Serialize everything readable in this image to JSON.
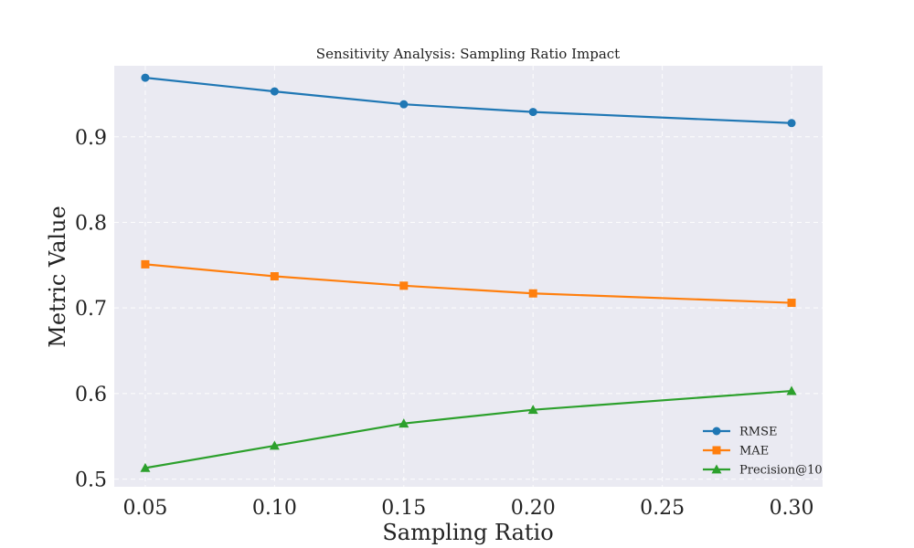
{
  "chart_data": {
    "type": "line",
    "title": "Sensitivity Analysis: Sampling Ratio Impact",
    "xlabel": "Sampling Ratio",
    "ylabel": "Metric Value",
    "xlim": [
      0.038,
      0.312
    ],
    "ylim": [
      0.491,
      0.983
    ],
    "xticks": [
      "0.05",
      "0.10",
      "0.15",
      "0.20",
      "0.25",
      "0.30"
    ],
    "yticks": [
      "0.5",
      "0.6",
      "0.7",
      "0.8",
      "0.9"
    ],
    "grid": true,
    "legend_position": "bottom-right",
    "x": [
      0.05,
      0.1,
      0.15,
      0.2,
      0.3
    ],
    "series": [
      {
        "name": "RMSE",
        "marker": "circle",
        "color": "#1f77b4",
        "values": [
          0.969,
          0.953,
          0.938,
          0.929,
          0.916
        ]
      },
      {
        "name": "MAE",
        "marker": "square",
        "color": "#ff7f0e",
        "values": [
          0.751,
          0.737,
          0.726,
          0.717,
          0.706
        ]
      },
      {
        "name": "Precision@10",
        "marker": "triangle",
        "color": "#2ca02c",
        "values": [
          0.513,
          0.539,
          0.565,
          0.581,
          0.603
        ]
      }
    ]
  }
}
